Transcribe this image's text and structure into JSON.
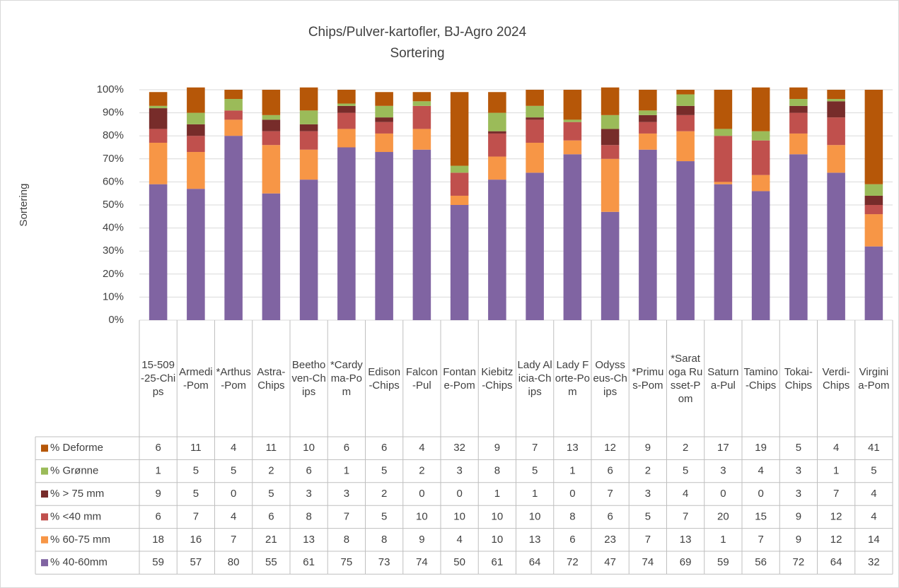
{
  "chart_data": {
    "type": "stacked_bar",
    "title": "Chips/Pulver-kartofler, BJ-Agro 2024",
    "subtitle": "Sortering",
    "y_label": "Sortering",
    "categories": [
      "15-509-25-Chips",
      "Armedi-Pom",
      "*Arthus-Pom",
      "Astra-Chips",
      "Beethoven-Chips",
      "*Cardyma-Pom",
      "Edison-Chips",
      "Falcon-Pul",
      "Fontane-Pom",
      "Kiebitz-Chips",
      "Lady Alicia-Chips",
      "Lady Forte-Pom",
      "Odysseus-Chips",
      "*Primus-Pom",
      "*Saratoga Russet-Pom",
      "Saturna-Pul",
      "Tamino-Chips",
      "Tokai-Chips",
      "Verdi-Chips",
      "Virginia-Pom"
    ],
    "series": [
      {
        "name": "% 40-60mm",
        "color": "#8064a2",
        "values": [
          59,
          57,
          80,
          55,
          61,
          75,
          73,
          74,
          50,
          61,
          64,
          72,
          47,
          74,
          69,
          59,
          56,
          72,
          64,
          32
        ]
      },
      {
        "name": "% 60-75 mm",
        "color": "#f79646",
        "values": [
          18,
          16,
          7,
          21,
          13,
          8,
          8,
          9,
          4,
          10,
          13,
          6,
          23,
          7,
          13,
          1,
          7,
          9,
          12,
          14
        ]
      },
      {
        "name": "% <40 mm",
        "color": "#c0504d",
        "values": [
          6,
          7,
          4,
          6,
          8,
          7,
          5,
          10,
          10,
          10,
          10,
          8,
          6,
          5,
          7,
          20,
          15,
          9,
          12,
          4
        ]
      },
      {
        "name": "% > 75 mm",
        "color": "#772c2a",
        "values": [
          9,
          5,
          0,
          5,
          3,
          3,
          2,
          0,
          0,
          1,
          1,
          0,
          7,
          3,
          4,
          0,
          0,
          3,
          7,
          4
        ]
      },
      {
        "name": "% Grønne",
        "color": "#9bbb59",
        "values": [
          1,
          5,
          5,
          2,
          6,
          1,
          5,
          2,
          3,
          8,
          5,
          1,
          6,
          2,
          5,
          3,
          4,
          3,
          1,
          5
        ]
      },
      {
        "name": "% Deforme",
        "color": "#b65708",
        "values": [
          6,
          11,
          4,
          11,
          10,
          6,
          6,
          4,
          32,
          9,
          7,
          13,
          12,
          9,
          2,
          17,
          19,
          5,
          4,
          41
        ]
      }
    ],
    "ylim": [
      0,
      100
    ],
    "yticks": [
      {
        "value": 0,
        "label": "0%"
      },
      {
        "value": 10,
        "label": "10%"
      },
      {
        "value": 20,
        "label": "20%"
      },
      {
        "value": 30,
        "label": "30%"
      },
      {
        "value": 40,
        "label": "40%"
      },
      {
        "value": 50,
        "label": "50%"
      },
      {
        "value": 60,
        "label": "60%"
      },
      {
        "value": 70,
        "label": "70%"
      },
      {
        "value": 80,
        "label": "80%"
      },
      {
        "value": 90,
        "label": "90%"
      },
      {
        "value": 100,
        "label": "100%"
      }
    ],
    "grid": true
  }
}
